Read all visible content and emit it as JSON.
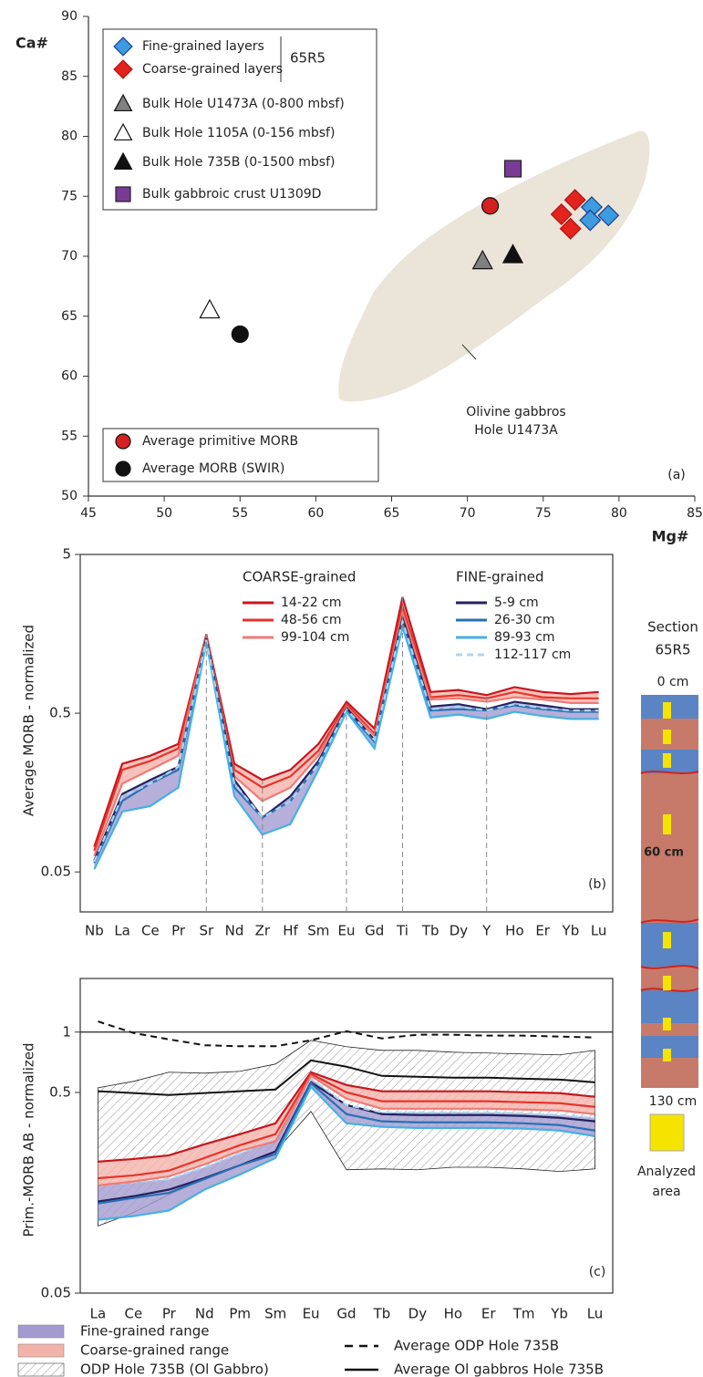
{
  "chart_data": [
    {
      "type": "scatter",
      "ylabel": "Ca#",
      "xlabel": "Mg#",
      "panel_label": "(a)",
      "xlim": [
        45,
        85
      ],
      "ylim": [
        50,
        90
      ],
      "xticks": [
        45,
        50,
        55,
        60,
        65,
        70,
        75,
        80,
        85
      ],
      "yticks": [
        50,
        55,
        60,
        65,
        70,
        75,
        80,
        85,
        90
      ],
      "annotation": [
        "Olivine gabbros",
        "Hole U1473A"
      ],
      "legend_group_label": "65R5",
      "series": [
        {
          "name": "Fine-grained layers",
          "marker": "diamond",
          "color": "#3d9be0",
          "edge": "#1b3f8f",
          "legend": "upper left",
          "x": [
            78.2,
            78.1,
            79.3
          ],
          "y": [
            74.1,
            73.0,
            73.4
          ]
        },
        {
          "name": "Coarse-grained layers",
          "marker": "diamond",
          "color": "#e3231d",
          "edge": "#b3120f",
          "legend": "upper left",
          "x": [
            77.1,
            76.2,
            76.8
          ],
          "y": [
            74.7,
            73.5,
            72.3
          ]
        },
        {
          "name": "Bulk Hole U1473A (0-800 mbsf)",
          "marker": "triangle",
          "color": "#808080",
          "edge": "#111111",
          "legend": "upper left",
          "x": [
            71
          ],
          "y": [
            69.6
          ]
        },
        {
          "name": "Bulk Hole 1105A (0-156 mbsf)",
          "marker": "triangle",
          "color": "#ffffff",
          "edge": "#111111",
          "legend": "upper left",
          "x": [
            53
          ],
          "y": [
            65.5
          ]
        },
        {
          "name": "Bulk Hole 735B (0-1500 mbsf)",
          "marker": "triangle",
          "color": "#111111",
          "edge": "#111111",
          "legend": "upper left",
          "x": [
            73
          ],
          "y": [
            70.1
          ]
        },
        {
          "name": "Bulk gabbroic crust U1309D",
          "marker": "square",
          "color": "#7a3b97",
          "edge": "#222222",
          "legend": "upper left",
          "x": [
            73
          ],
          "y": [
            77.3
          ]
        },
        {
          "name": "Average primitive MORB",
          "marker": "circle",
          "color": "#d42020",
          "edge": "#111111",
          "legend": "lower left",
          "x": [
            71.5
          ],
          "y": [
            74.2
          ]
        },
        {
          "name": "Average MORB (SWIR)",
          "marker": "circle",
          "color": "#111111",
          "edge": "#111111",
          "legend": "lower left",
          "x": [
            55
          ],
          "y": [
            63.5
          ]
        }
      ]
    },
    {
      "type": "line",
      "log_y": true,
      "ylabel": "Average MORB - normalized",
      "panel_label": "(b)",
      "categories": [
        "Nb",
        "La",
        "Ce",
        "Pr",
        "Sr",
        "Nd",
        "Zr",
        "Hf",
        "Sm",
        "Eu",
        "Gd",
        "Ti",
        "Tb",
        "Dy",
        "Y",
        "Ho",
        "Er",
        "Yb",
        "Lu"
      ],
      "ylim": [
        0.028,
        5
      ],
      "yticks": [
        0.05,
        0.5,
        5
      ],
      "groups": [
        {
          "title": "COARSE-grained",
          "fill": "#f4b3aa",
          "series": [
            {
              "name": "14-22 cm",
              "color": "#c8161d",
              "values": [
                0.072,
                0.24,
                0.27,
                0.32,
                1.57,
                0.24,
                0.19,
                0.22,
                0.32,
                0.59,
                0.4,
                2.69,
                0.68,
                0.7,
                0.65,
                0.73,
                0.68,
                0.66,
                0.68
              ]
            },
            {
              "name": "48-56 cm",
              "color": "#e8332a",
              "values": [
                0.068,
                0.22,
                0.25,
                0.3,
                1.53,
                0.22,
                0.17,
                0.2,
                0.29,
                0.57,
                0.37,
                2.36,
                0.63,
                0.65,
                0.62,
                0.68,
                0.63,
                0.62,
                0.62
              ]
            },
            {
              "name": "99-104 cm",
              "color": "#f07a76",
              "values": [
                0.063,
                0.18,
                0.22,
                0.27,
                1.53,
                0.2,
                0.14,
                0.17,
                0.27,
                0.55,
                0.36,
                2.15,
                0.61,
                0.62,
                0.59,
                0.63,
                0.61,
                0.58,
                0.58
              ]
            }
          ]
        },
        {
          "title": "FINE-grained",
          "fill": "#a39bd0",
          "series": [
            {
              "name": "5-9 cm",
              "color": "#24225e",
              "values": [
                0.059,
                0.155,
                0.19,
                0.23,
                1.49,
                0.19,
                0.11,
                0.15,
                0.25,
                0.54,
                0.34,
                1.99,
                0.55,
                0.57,
                0.53,
                0.59,
                0.56,
                0.53,
                0.53
              ]
            },
            {
              "name": "26-30 cm",
              "color": "#2a6fb5",
              "values": [
                0.057,
                0.14,
                0.18,
                0.22,
                1.45,
                0.17,
                0.11,
                0.14,
                0.24,
                0.52,
                0.33,
                1.86,
                0.52,
                0.53,
                0.52,
                0.56,
                0.53,
                0.51,
                0.51
              ]
            },
            {
              "name": "89-93 cm",
              "color": "#45b0e5",
              "values": [
                0.052,
                0.12,
                0.13,
                0.17,
                1.4,
                0.15,
                0.086,
                0.1,
                0.22,
                0.51,
                0.3,
                1.75,
                0.47,
                0.49,
                0.46,
                0.51,
                0.48,
                0.46,
                0.46
              ]
            },
            {
              "name": "112-117 cm",
              "color": "#a9d8f2",
              "dash": true,
              "values": [
                0.058,
                0.15,
                0.18,
                0.23,
                1.45,
                0.18,
                0.11,
                0.14,
                0.24,
                0.53,
                0.34,
                1.9,
                0.53,
                0.55,
                0.52,
                0.57,
                0.54,
                0.52,
                0.52
              ]
            }
          ]
        }
      ]
    },
    {
      "type": "line",
      "log_y": true,
      "ylabel": "Prim.-MORB AB - normalized",
      "panel_label": "(c)",
      "categories": [
        "La",
        "Ce",
        "Pr",
        "Nd",
        "Pm",
        "Sm",
        "Eu",
        "Gd",
        "Tb",
        "Dy",
        "Ho",
        "Er",
        "Tm",
        "Yb",
        "Lu"
      ],
      "ylim": [
        0.05,
        1.85
      ],
      "yticks": [
        0.05,
        0.5,
        1
      ],
      "hline": 1,
      "band": {
        "name": "ODP Hole 735B (Ol Gabbro)",
        "low": [
          0.108,
          0.126,
          0.155,
          0.185,
          0.217,
          0.254,
          0.402,
          0.206,
          0.208,
          0.206,
          0.212,
          0.212,
          0.208,
          0.202,
          0.208
        ],
        "high": [
          0.528,
          0.568,
          0.631,
          0.624,
          0.638,
          0.693,
          0.91,
          0.846,
          0.811,
          0.811,
          0.794,
          0.786,
          0.778,
          0.77,
          0.811
        ]
      },
      "groups": [
        {
          "name": "Fine-grained range",
          "fill": "#a39bd0",
          "series": [
            {
              "color": "#24225e",
              "values": [
                0.143,
                0.152,
                0.164,
                0.187,
                0.217,
                0.254,
                0.562,
                0.433,
                0.39,
                0.386,
                0.386,
                0.386,
                0.382,
                0.374,
                0.359
              ]
            },
            {
              "color": "#2a6fb5",
              "values": [
                0.14,
                0.149,
                0.158,
                0.185,
                0.217,
                0.246,
                0.556,
                0.39,
                0.359,
                0.355,
                0.355,
                0.355,
                0.351,
                0.344,
                0.323
              ]
            },
            {
              "color": "#45b0e5",
              "values": [
                0.116,
                0.121,
                0.129,
                0.164,
                0.195,
                0.236,
                0.534,
                0.351,
                0.337,
                0.333,
                0.333,
                0.333,
                0.33,
                0.323,
                0.303
              ]
            },
            {
              "color": "#a9d8f2",
              "dash": true,
              "values": [
                0.172,
                0.178,
                0.185,
                0.212,
                0.249,
                0.291,
                0.587,
                0.433,
                0.398,
                0.398,
                0.398,
                0.398,
                0.394,
                0.386,
                0.374
              ]
            }
          ]
        },
        {
          "name": "Coarse-grained range",
          "fill": "#f4b3aa",
          "series": [
            {
              "color": "#c8161d",
              "values": [
                0.226,
                0.233,
                0.243,
                0.276,
                0.31,
                0.351,
                0.631,
                0.545,
                0.507,
                0.507,
                0.507,
                0.507,
                0.501,
                0.496,
                0.476
              ]
            },
            {
              "color": "#e8332a",
              "values": [
                0.187,
                0.193,
                0.204,
                0.236,
                0.273,
                0.31,
                0.618,
                0.501,
                0.452,
                0.452,
                0.452,
                0.452,
                0.447,
                0.442,
                0.424
              ]
            },
            {
              "color": "#f07a76",
              "values": [
                0.172,
                0.18,
                0.191,
                0.219,
                0.256,
                0.285,
                0.605,
                0.466,
                0.415,
                0.415,
                0.415,
                0.415,
                0.411,
                0.407,
                0.39
              ]
            }
          ]
        }
      ],
      "series": [
        {
          "name": "Average ODP Hole 735B",
          "color": "#111111",
          "dash": true,
          "values": [
            1.13,
            0.99,
            0.92,
            0.86,
            0.85,
            0.85,
            0.91,
            1.01,
            0.93,
            0.97,
            0.97,
            0.96,
            0.96,
            0.95,
            0.94
          ]
        },
        {
          "name": "Average Ol gabbros Hole 735B",
          "color": "#111111",
          "values": [
            0.507,
            0.497,
            0.486,
            0.497,
            0.507,
            0.517,
            0.723,
            0.672,
            0.605,
            0.599,
            0.593,
            0.593,
            0.586,
            0.58,
            0.562
          ]
        }
      ]
    }
  ],
  "section": {
    "title": [
      "Section",
      "65R5"
    ],
    "top": "0 cm",
    "middle": "60 cm",
    "bottom": "130 cm",
    "key": [
      "Analyzed",
      "area"
    ]
  }
}
